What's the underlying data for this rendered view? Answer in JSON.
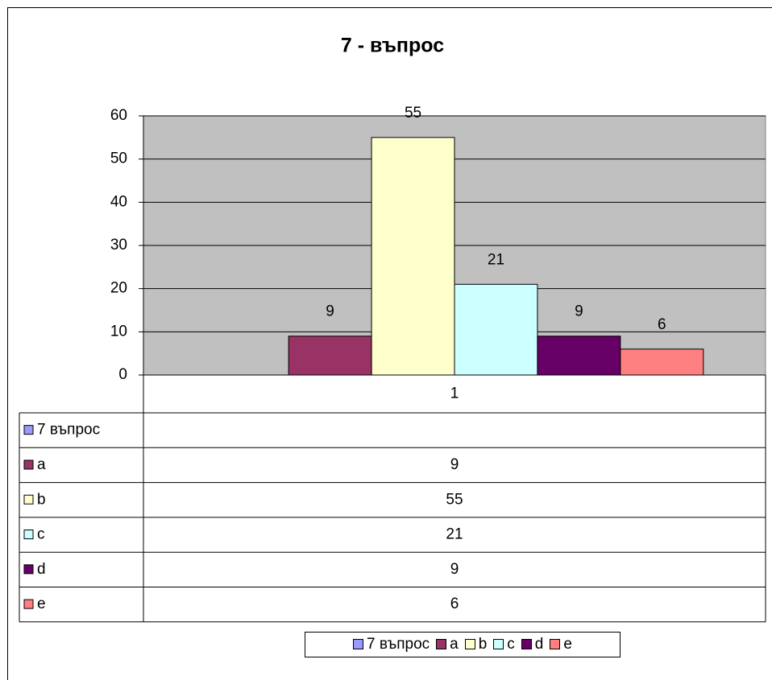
{
  "chart_data": {
    "type": "bar",
    "title": "7 - въпрос",
    "categories": [
      "1"
    ],
    "series": [
      {
        "name": "7 въпрос",
        "color": "#9999ff",
        "values": [
          null
        ]
      },
      {
        "name": "a",
        "color": "#993366",
        "values": [
          9
        ]
      },
      {
        "name": "b",
        "color": "#ffffcc",
        "values": [
          55
        ]
      },
      {
        "name": "c",
        "color": "#ccffff",
        "values": [
          21
        ]
      },
      {
        "name": "d",
        "color": "#660066",
        "values": [
          9
        ]
      },
      {
        "name": "e",
        "color": "#ff8080",
        "values": [
          6
        ]
      }
    ],
    "ylim": [
      0,
      60
    ],
    "yticks": [
      0,
      10,
      20,
      30,
      40,
      50,
      60
    ],
    "grid": true,
    "plot_background": "#c0c0c0",
    "legend": "bottom",
    "data_table": true
  }
}
